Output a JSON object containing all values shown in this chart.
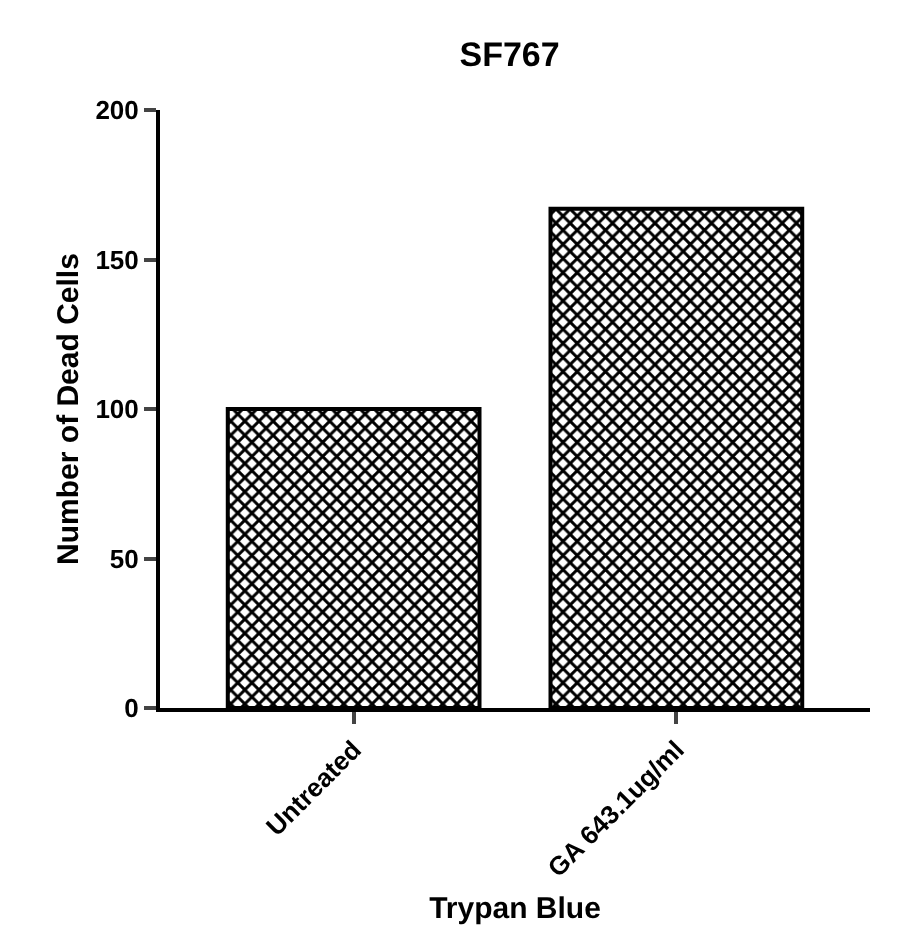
{
  "chart_data": {
    "type": "bar",
    "title": "SF767",
    "xlabel": "Trypan Blue",
    "ylabel": "Number of Dead Cells",
    "categories": [
      "Untreated",
      "GA 643.1ug/ml"
    ],
    "values": [
      100,
      167
    ],
    "color": "#000000",
    "ylim": [
      0,
      200
    ],
    "yticks": [
      0,
      50,
      100,
      150,
      200
    ],
    "grid": false,
    "legend": false
  }
}
